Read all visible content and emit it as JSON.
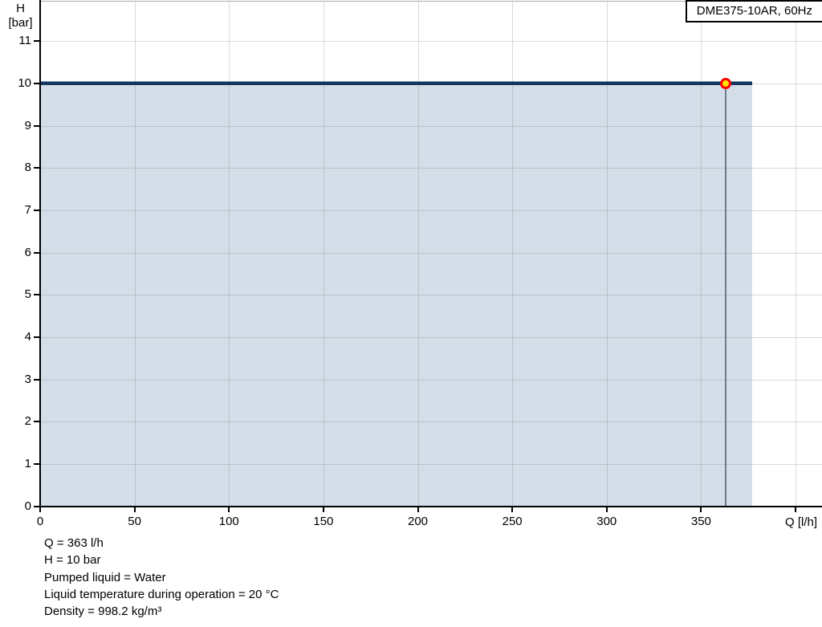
{
  "legend": {
    "label": "DME375-10AR, 60Hz",
    "position": "top-right"
  },
  "chart_data": {
    "type": "line",
    "title": "",
    "xlabel": "Q [l/h]",
    "ylabel_lines": [
      "H",
      "[bar]"
    ],
    "x_ticks": [
      0,
      50,
      100,
      150,
      200,
      250,
      300,
      350
    ],
    "x_ticks_unlabeled": [
      400
    ],
    "y_ticks": [
      0,
      1,
      2,
      3,
      4,
      5,
      6,
      7,
      8,
      9,
      10,
      11
    ],
    "xlim": [
      0,
      414
    ],
    "ylim": [
      0,
      11.96
    ],
    "grid": true,
    "legend_position": "top-right",
    "series": [
      {
        "name": "DME375-10AR, 60Hz",
        "points": [
          {
            "q": 0,
            "h": 10
          },
          {
            "q": 377,
            "h": 10
          }
        ],
        "color": "#17365d",
        "area_fill": "#d4dee8"
      }
    ],
    "operating_point": {
      "q": 363,
      "h": 10,
      "marker_fill": "#ffe100",
      "marker_stroke": "#ff0000",
      "drop_line_color": "#6e7b8a"
    }
  },
  "info_panel": {
    "lines": [
      "Q = 363 l/h",
      "H = 10 bar",
      "Pumped liquid = Water",
      "Liquid temperature during operation = 20 °C",
      "Density = 998.2 kg/m³"
    ]
  }
}
